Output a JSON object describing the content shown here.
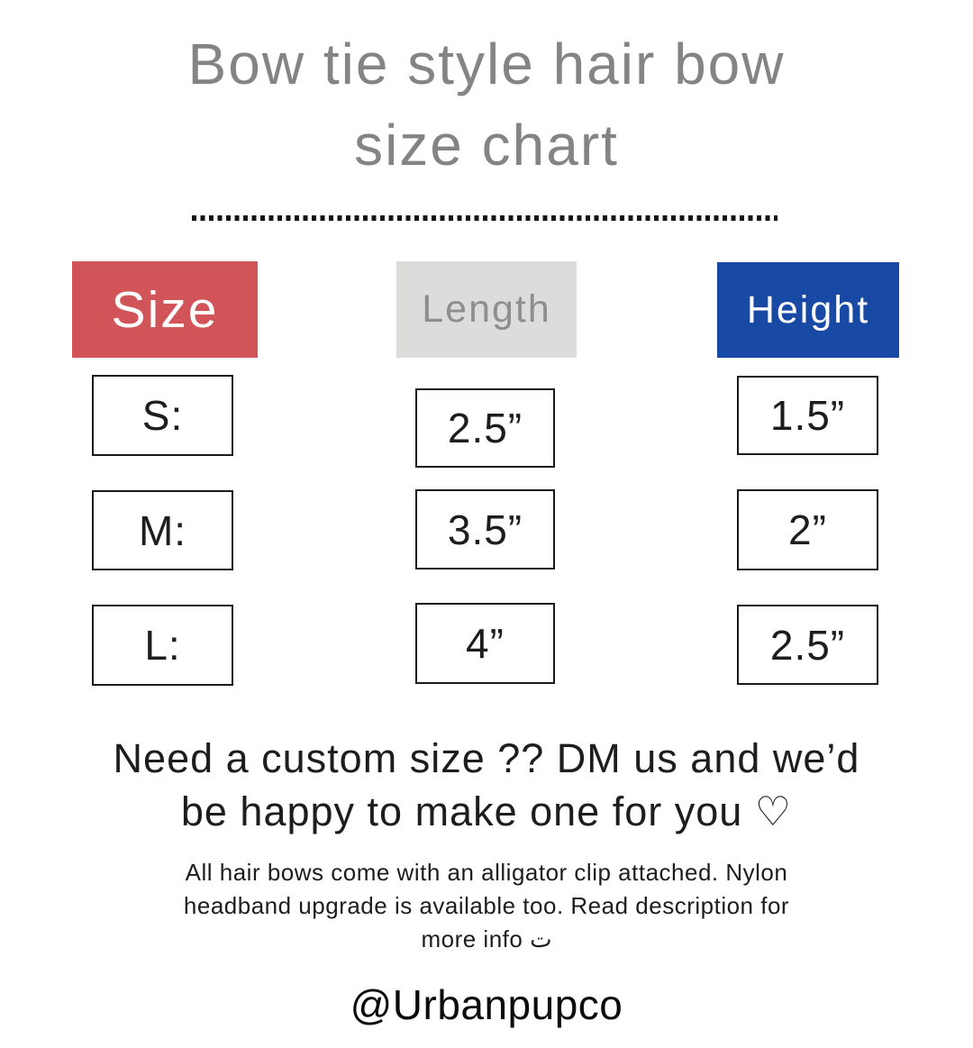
{
  "title": {
    "line1": "Bow tie style hair bow",
    "line2": "size chart"
  },
  "table": {
    "columns": [
      {
        "id": "size",
        "label": "Size",
        "bg": "#d15458",
        "text_color": "#ffffff"
      },
      {
        "id": "length",
        "label": "Length",
        "bg": "#dcdcda",
        "text_color": "#8e8e8c"
      },
      {
        "id": "height",
        "label": "Height",
        "bg": "#1849a4",
        "text_color": "#ffffff"
      }
    ],
    "rows": [
      {
        "size": "S:",
        "length": "2.5”",
        "height": "1.5”"
      },
      {
        "size": "M:",
        "length": "3.5”",
        "height": "2”"
      },
      {
        "size": "L:",
        "length": "4”",
        "height": "2.5”"
      }
    ]
  },
  "custom_note": {
    "line1": "Need a custom size ?? DM us and we’d",
    "line2": "be happy to make one for you ♡"
  },
  "info_note": {
    "line1": "All hair bows come with an alligator clip attached. Nylon",
    "line2": "headband upgrade is available too. Read description for",
    "line3": "more info ت"
  },
  "handle": "@Urbanpupco",
  "colors": {
    "size_header_bg": "#d15458",
    "length_header_bg": "#dcdcda",
    "height_header_bg": "#1849a4",
    "title_text": "#848484",
    "body_text": "#1d1d1d",
    "cell_border": "#1a1a1a"
  },
  "chart_data": {
    "type": "table",
    "title": "Bow tie style hair bow size chart",
    "columns": [
      "Size",
      "Length",
      "Height"
    ],
    "categories": [
      "S",
      "M",
      "L"
    ],
    "series": [
      {
        "name": "Length (inches)",
        "values": [
          2.5,
          3.5,
          4
        ]
      },
      {
        "name": "Height (inches)",
        "values": [
          1.5,
          2,
          2.5
        ]
      }
    ]
  }
}
